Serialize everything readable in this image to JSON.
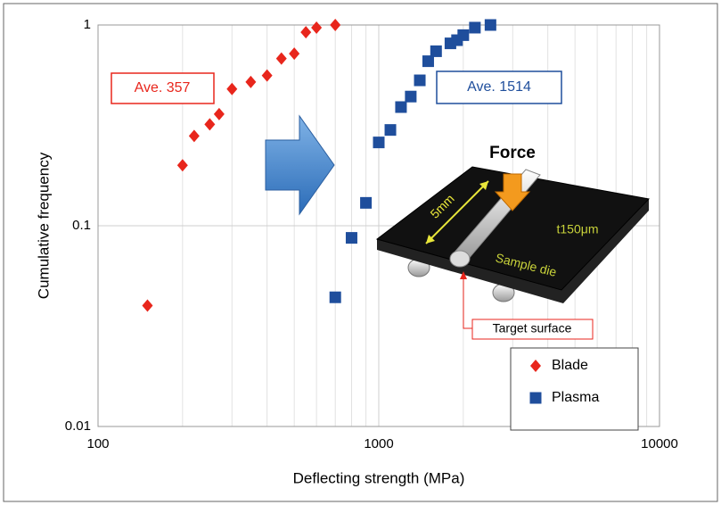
{
  "chart_data": {
    "type": "scatter",
    "x_label": "Deflecting strength (MPa)",
    "y_label": "Cumulative frequency",
    "xlim": [
      100,
      10000
    ],
    "ylim": [
      0.01,
      1
    ],
    "xticks": [
      100,
      1000,
      10000
    ],
    "yticks": [
      0.01,
      0.1,
      1
    ],
    "xscale": "log",
    "yscale": "log",
    "grid": true,
    "minor_grid": true,
    "legend": "lower right",
    "series": [
      {
        "name": "Blade",
        "color": "#e8261c",
        "marker": "diamond",
        "x": [
          150,
          200,
          220,
          250,
          270,
          300,
          350,
          400,
          450,
          500,
          550,
          600,
          700
        ],
        "values": [
          0.04,
          0.2,
          0.28,
          0.32,
          0.36,
          0.48,
          0.52,
          0.56,
          0.68,
          0.72,
          0.92,
          0.97,
          1.0
        ]
      },
      {
        "name": "Plasma",
        "color": "#1f4e9c",
        "marker": "square",
        "x": [
          700,
          800,
          900,
          1000,
          1100,
          1200,
          1300,
          1400,
          1500,
          1600,
          1800,
          1900,
          2000,
          2200,
          2500
        ],
        "values": [
          0.044,
          0.087,
          0.13,
          0.26,
          0.3,
          0.39,
          0.44,
          0.53,
          0.66,
          0.74,
          0.81,
          0.84,
          0.89,
          0.97,
          1.0
        ]
      }
    ],
    "annotations": [
      "Ave. 357",
      "Ave. 1514",
      "Force",
      "5mm",
      "t150μm",
      "Sample die",
      "Target surface"
    ]
  }
}
